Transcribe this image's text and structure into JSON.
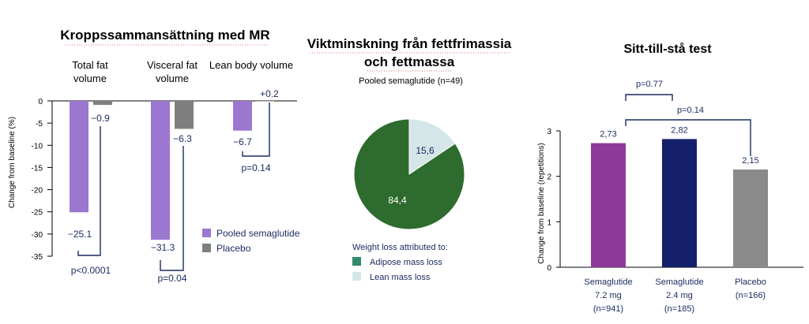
{
  "chart_data": [
    {
      "type": "bar",
      "title": "Kroppssammansättning med MR",
      "ylabel": "Change from baseline (%)",
      "ylim": [
        -35,
        0
      ],
      "yticks": [
        0,
        -5,
        -10,
        -15,
        -20,
        -25,
        -30,
        -35
      ],
      "categories": [
        "Total fat volume",
        "Visceral fat volume",
        "Lean body volume"
      ],
      "category_lines": [
        [
          "Total fat",
          "volume"
        ],
        [
          "Visceral fat",
          "volume"
        ],
        [
          "Lean body volume"
        ]
      ],
      "series": [
        {
          "name": "Pooled semaglutide",
          "color": "#9b77d0",
          "values": [
            -25.1,
            -31.3,
            -6.7
          ],
          "labels": [
            "−25.1",
            "−31.3",
            "−6.7"
          ]
        },
        {
          "name": "Placebo",
          "color": "#7f7f7f",
          "values": [
            -0.9,
            -6.3,
            0.2
          ],
          "labels": [
            "−0.9",
            "−6.3",
            "+0.2"
          ]
        }
      ],
      "pvalues": [
        "p<0.0001",
        "p=0.04",
        "p=0.14"
      ]
    },
    {
      "type": "pie",
      "title_lines": [
        "Viktminskning från fettfrimassia",
        "och fettmassa"
      ],
      "subtitle": "Pooled semaglutide (n=49)",
      "slices": [
        {
          "label": "Adipose mass loss",
          "value": 84.4,
          "display": "84,4",
          "color": "#2e6b2e"
        },
        {
          "label": "Lean mass loss",
          "value": 15.6,
          "display": "15,6",
          "color": "#d4e6e8"
        }
      ],
      "legend_title": "Weight loss attributed to:",
      "legend_colors": [
        "#2f8a6e",
        "#d4e6e8"
      ]
    },
    {
      "type": "bar",
      "title": "Sitt-till-stå test",
      "ylabel": "Change from baseline (repetitions)",
      "ylim": [
        0,
        3
      ],
      "yticks": [
        0,
        1,
        2,
        3
      ],
      "categories": [
        [
          "Semaglutide",
          "7.2 mg",
          "(n=941)"
        ],
        [
          "Semaglutide",
          "2.4 mg",
          "(n=185)"
        ],
        [
          "Placebo",
          "(n=166)"
        ]
      ],
      "values": [
        2.73,
        2.82,
        2.15
      ],
      "labels": [
        "2,73",
        "2,82",
        "2,15"
      ],
      "colors": [
        "#8b3a9a",
        "#14206a",
        "#8a8a8a"
      ],
      "pvalues": [
        "p=0.77",
        "p=0.14"
      ]
    }
  ]
}
